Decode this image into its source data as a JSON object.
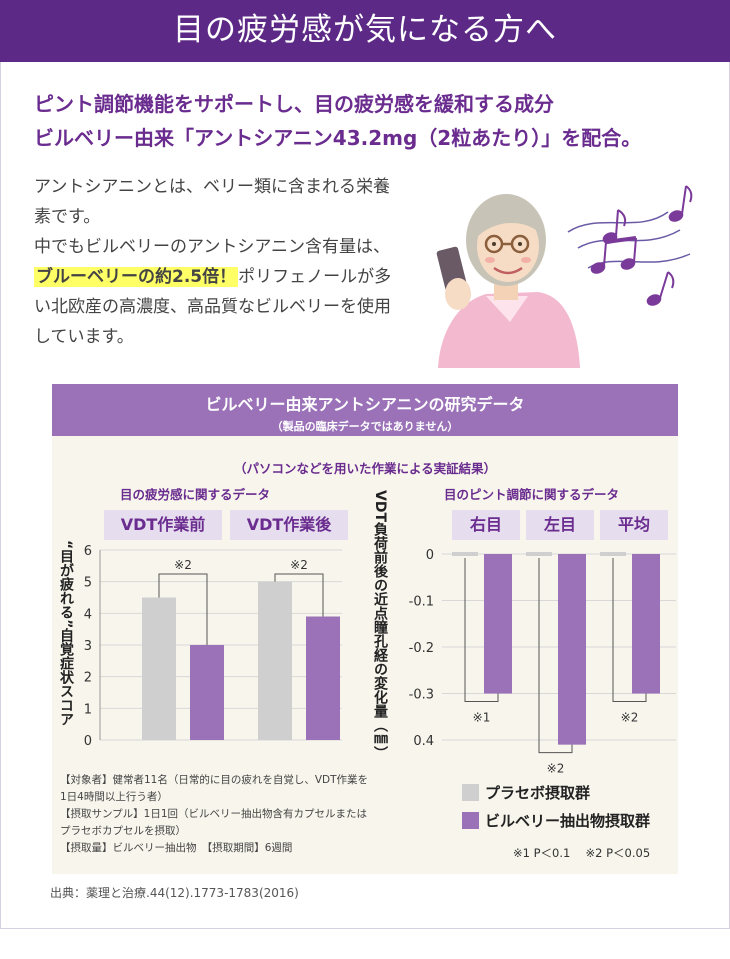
{
  "banner": {
    "title": "目の疲労感が気になる方へ"
  },
  "lead": {
    "line1": "ピント調節機能をサポートし、目の疲労感を緩和する成分",
    "line2": "ビルベリー由来「アントシアニン43.2mg（2粒あたり）」を配合。"
  },
  "intro": {
    "p1": "アントシアニンとは、ベリー類に含まれる栄養素です。",
    "p2_before": "中でもビルベリーのアントシアニン含有量は、",
    "p2_highlight": "ブルーベリーの約2.5倍！",
    "p2_after": "ポリフェノールが多い北欧産の高濃度、高品質なビルベリーを使用しています。"
  },
  "study": {
    "title": "ビルベリー由来アントシアニンの研究データ",
    "subtitle": "（製品の臨床データではありません）",
    "method": "（パソコンなどを用いた作業による実証結果）",
    "left_title": "目の疲労感に関するデータ",
    "right_title": "目のピント調節に関するデータ",
    "notes": {
      "line1": "【対象者】健常者11名（日常的に目の疲れを自覚し、VDT作業を",
      "line2": "1日4時間以上行う者）",
      "line3": "【摂取サンプル】1日1回（ビルベリー抽出物含有カプセルまたは",
      "line4": "プラセボカプセルを摂取）",
      "line5": "【摂取量】ビルベリー抽出物　【摂取期間】6週間"
    },
    "legend": {
      "placebo": "プラセボ摂取群",
      "bilberry": "ビルベリー抽出物摂取群"
    },
    "pvalues": "※1 P＜0.1　 ※2 P＜0.05",
    "source": "出典：薬理と治療.44(12).1773-1783(2016)"
  },
  "colors": {
    "banner": "#5c2a86",
    "lead": "#6a2c8f",
    "placebo": "#cfcfcf",
    "bilberry": "#9b72b8",
    "study_bg": "#f7f5ec"
  },
  "chart_data": [
    {
      "type": "bar",
      "title": "目の疲労感に関するデータ",
      "categories": [
        "VDT作業前",
        "VDT作業後"
      ],
      "ylabel": "“目が疲れる”自覚症状スコア",
      "ylim": [
        0,
        6
      ],
      "yticks": [
        "0",
        "1",
        "2",
        "3",
        "4",
        "5",
        "6"
      ],
      "series": [
        {
          "name": "プラセボ摂取群",
          "values": [
            4.5,
            5.0
          ]
        },
        {
          "name": "ビルベリー抽出物摂取群",
          "values": [
            3.0,
            3.9
          ]
        }
      ],
      "annotations": [
        "※2",
        "※2"
      ]
    },
    {
      "type": "bar",
      "title": "目のピント調節に関するデータ",
      "categories": [
        "右目",
        "左目",
        "平均"
      ],
      "ylabel": "VDT負荷前後の近点瞳孔経の変化量（㎜）",
      "ylim": [
        -0.4,
        0
      ],
      "yticks": [
        "0",
        "-0.1",
        "-0.2",
        "-0.3",
        "0.4"
      ],
      "series": [
        {
          "name": "プラセボ摂取群",
          "values": [
            0.0,
            0.0,
            0.0
          ]
        },
        {
          "name": "ビルベリー抽出物摂取群",
          "values": [
            -0.3,
            -0.41,
            -0.3
          ]
        }
      ],
      "annotations": [
        "※1",
        "※2",
        "※2"
      ]
    }
  ]
}
